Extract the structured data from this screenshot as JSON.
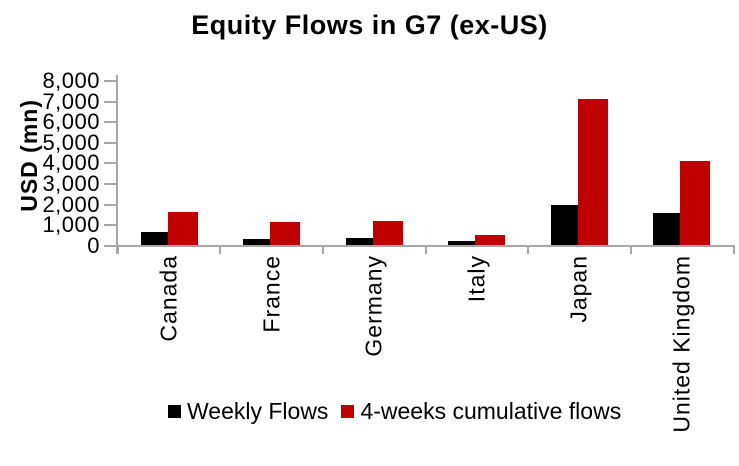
{
  "chart_data": {
    "type": "bar",
    "title": "Equity Flows in G7 (ex-US)",
    "ylabel": "USD (mn)",
    "xlabel": "",
    "categories": [
      "Canada",
      "France",
      "Germany",
      "Italy",
      "Japan",
      "United Kingdom"
    ],
    "series": [
      {
        "name": "Weekly Flows",
        "color": "#000000",
        "values": [
          650,
          270,
          340,
          200,
          1950,
          1550
        ]
      },
      {
        "name": "4-weeks cumulative flows",
        "color": "#C00000",
        "values": [
          1600,
          1100,
          1150,
          500,
          7100,
          4050
        ]
      }
    ],
    "ylim": [
      0,
      8000
    ],
    "y_ticks": [
      {
        "label": "8,000",
        "value": 8000
      },
      {
        "label": "7,000",
        "value": 7000
      },
      {
        "label": "6,000",
        "value": 6000
      },
      {
        "label": "5,000",
        "value": 5000
      },
      {
        "label": "4,000",
        "value": 4000
      },
      {
        "label": "3,000",
        "value": 3000
      },
      {
        "label": "2,000",
        "value": 2000
      },
      {
        "label": "1,000",
        "value": 1000
      },
      {
        "label": "0",
        "value": 0
      }
    ],
    "grid": false,
    "legend_position": "bottom",
    "axis_color": "#a6a6a6",
    "background_color": "#ffffff"
  }
}
